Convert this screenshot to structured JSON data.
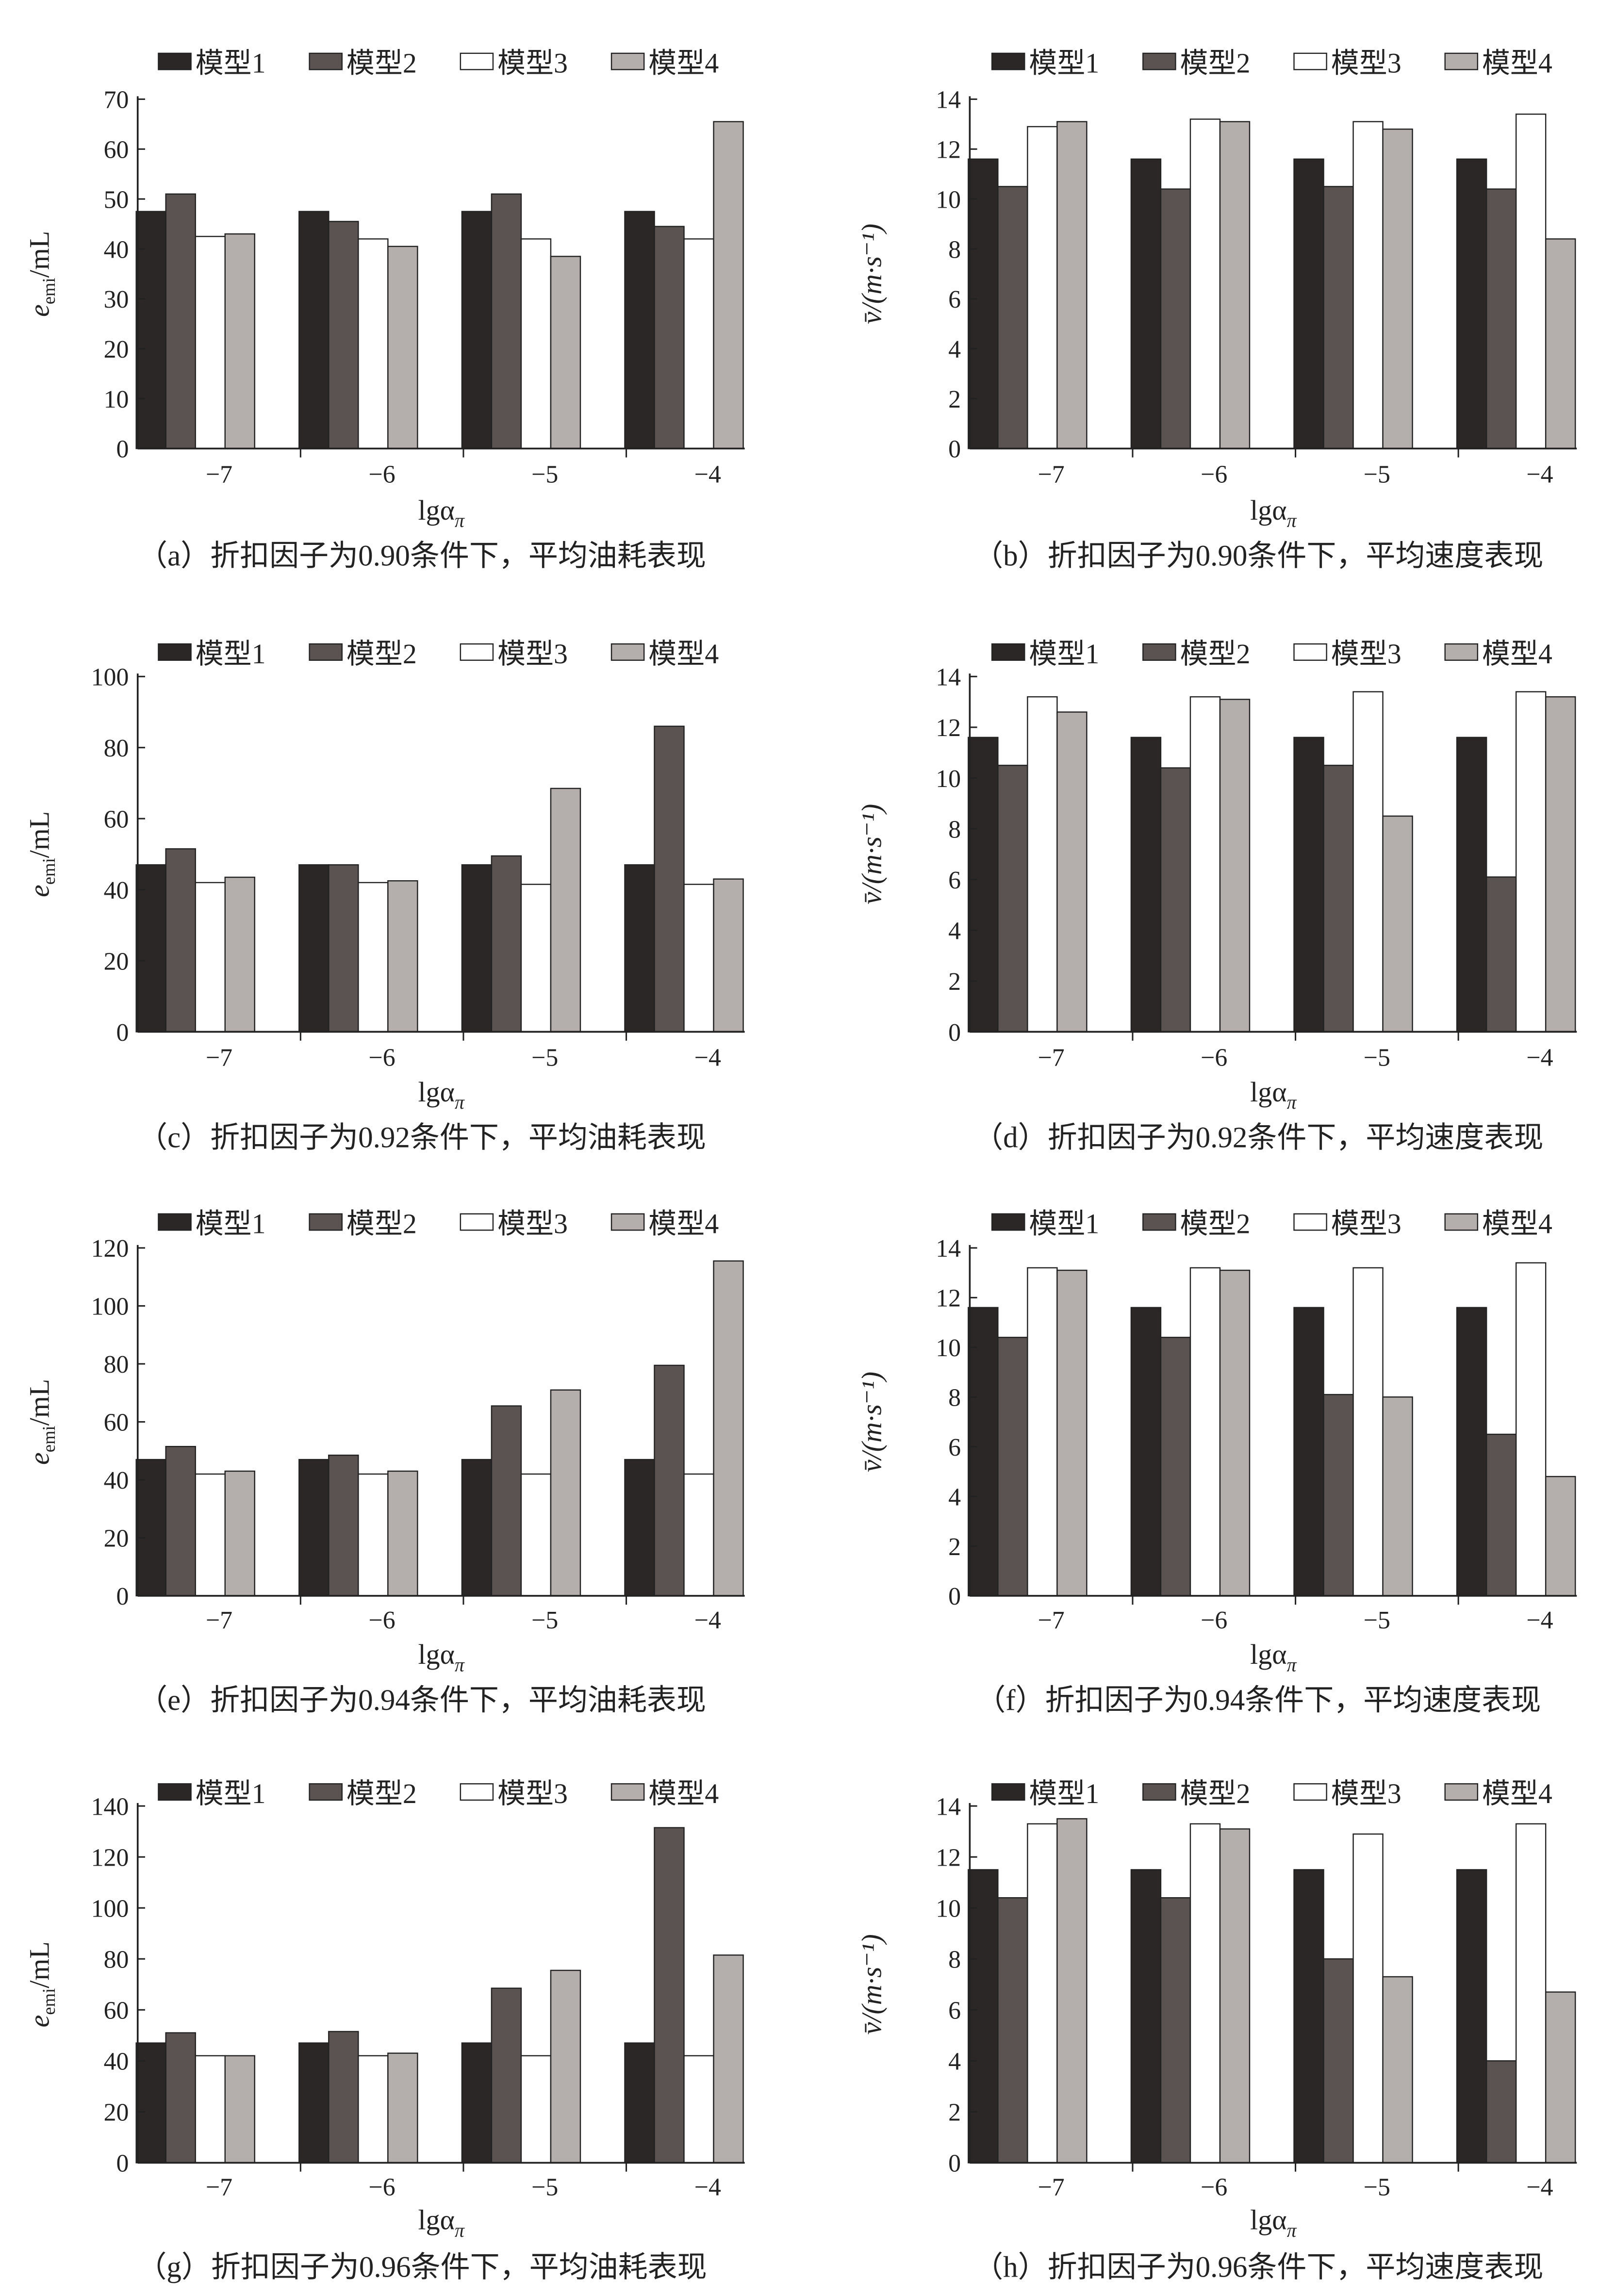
{
  "colors": {
    "model1": "#2b2726",
    "model2": "#5a5352",
    "model3": "#ffffff",
    "model4": "#b4aeac",
    "axis": "#222222"
  },
  "legend": [
    "模型1",
    "模型2",
    "模型3",
    "模型4"
  ],
  "xlabel": {
    "main": "lgα",
    "sub": "π"
  },
  "chart_data": [
    {
      "type": "bar",
      "id": "a",
      "caption": "（a）折扣因子为0.90条件下，平均油耗表现",
      "categories": [
        "−7",
        "−6",
        "−5",
        "−4"
      ],
      "ylabel": {
        "main": "e",
        "sub": "emi",
        "rest": "/mL"
      },
      "ylim": [
        0,
        70
      ],
      "yticks": [
        "0",
        "10",
        "20",
        "30",
        "40",
        "50",
        "60",
        "70"
      ],
      "ystep": 10,
      "series": [
        {
          "name": "模型1",
          "values": [
            47.5,
            47.5,
            47.5,
            47.5
          ]
        },
        {
          "name": "模型2",
          "values": [
            51,
            45.5,
            51,
            44.5
          ]
        },
        {
          "name": "模型3",
          "values": [
            42.5,
            42,
            42,
            42
          ]
        },
        {
          "name": "模型4",
          "values": [
            43,
            40.5,
            38.5,
            65.5
          ]
        }
      ]
    },
    {
      "type": "bar",
      "id": "b",
      "caption": "（b）折扣因子为0.90条件下，平均速度表现",
      "categories": [
        "−7",
        "−6",
        "−5",
        "−4"
      ],
      "ylabel": {
        "main": "v̄/(m·s⁻¹)",
        "sub": "",
        "rest": ""
      },
      "ylim": [
        0,
        14
      ],
      "yticks": [
        "0",
        "2",
        "4",
        "6",
        "8",
        "10",
        "12",
        "14"
      ],
      "ystep": 2,
      "series": [
        {
          "name": "模型1",
          "values": [
            11.6,
            11.6,
            11.6,
            11.6
          ]
        },
        {
          "name": "模型2",
          "values": [
            10.5,
            10.4,
            10.5,
            10.4
          ]
        },
        {
          "name": "模型3",
          "values": [
            12.9,
            13.2,
            13.1,
            13.4
          ]
        },
        {
          "name": "模型4",
          "values": [
            13.1,
            13.1,
            12.8,
            8.4
          ]
        }
      ]
    },
    {
      "type": "bar",
      "id": "c",
      "caption": "（c）折扣因子为0.92条件下，平均油耗表现",
      "categories": [
        "−7",
        "−6",
        "−5",
        "−4"
      ],
      "ylabel": {
        "main": "e",
        "sub": "emi",
        "rest": "/mL"
      },
      "ylim": [
        0,
        100
      ],
      "yticks": [
        "0",
        "20",
        "40",
        "60",
        "80",
        "100"
      ],
      "ystep": 20,
      "series": [
        {
          "name": "模型1",
          "values": [
            47,
            47,
            47,
            47
          ]
        },
        {
          "name": "模型2",
          "values": [
            51.5,
            47,
            49.5,
            86
          ]
        },
        {
          "name": "模型3",
          "values": [
            42,
            42,
            41.5,
            41.5
          ]
        },
        {
          "name": "模型4",
          "values": [
            43.5,
            42.5,
            68.5,
            43
          ]
        }
      ]
    },
    {
      "type": "bar",
      "id": "d",
      "caption": "（d）折扣因子为0.92条件下，平均速度表现",
      "categories": [
        "−7",
        "−6",
        "−5",
        "−4"
      ],
      "ylabel": {
        "main": "v̄/(m·s⁻¹)",
        "sub": "",
        "rest": ""
      },
      "ylim": [
        0,
        14
      ],
      "yticks": [
        "0",
        "2",
        "4",
        "6",
        "8",
        "10",
        "12",
        "14"
      ],
      "ystep": 2,
      "series": [
        {
          "name": "模型1",
          "values": [
            11.6,
            11.6,
            11.6,
            11.6
          ]
        },
        {
          "name": "模型2",
          "values": [
            10.5,
            10.4,
            10.5,
            6.1
          ]
        },
        {
          "name": "模型3",
          "values": [
            13.2,
            13.2,
            13.4,
            13.4
          ]
        },
        {
          "name": "模型4",
          "values": [
            12.6,
            13.1,
            8.5,
            13.2
          ]
        }
      ]
    },
    {
      "type": "bar",
      "id": "e",
      "caption": "（e）折扣因子为0.94条件下，平均油耗表现",
      "categories": [
        "−7",
        "−6",
        "−5",
        "−4"
      ],
      "ylabel": {
        "main": "e",
        "sub": "emi",
        "rest": "/mL"
      },
      "ylim": [
        0,
        120
      ],
      "yticks": [
        "0",
        "20",
        "40",
        "60",
        "80",
        "100",
        "120"
      ],
      "ystep": 20,
      "series": [
        {
          "name": "模型1",
          "values": [
            47,
            47,
            47,
            47
          ]
        },
        {
          "name": "模型2",
          "values": [
            51.5,
            48.5,
            65.5,
            79.5
          ]
        },
        {
          "name": "模型3",
          "values": [
            42,
            42,
            42,
            42
          ]
        },
        {
          "name": "模型4",
          "values": [
            43,
            43,
            71,
            115.5
          ]
        }
      ]
    },
    {
      "type": "bar",
      "id": "f",
      "caption": "（f）折扣因子为0.94条件下，平均速度表现",
      "categories": [
        "−7",
        "−6",
        "−5",
        "−4"
      ],
      "ylabel": {
        "main": "v̄/(m·s⁻¹)",
        "sub": "",
        "rest": ""
      },
      "ylim": [
        0,
        14
      ],
      "yticks": [
        "0",
        "2",
        "4",
        "6",
        "8",
        "10",
        "12",
        "14"
      ],
      "ystep": 2,
      "series": [
        {
          "name": "模型1",
          "values": [
            11.6,
            11.6,
            11.6,
            11.6
          ]
        },
        {
          "name": "模型2",
          "values": [
            10.4,
            10.4,
            8.1,
            6.5
          ]
        },
        {
          "name": "模型3",
          "values": [
            13.2,
            13.2,
            13.2,
            13.4
          ]
        },
        {
          "name": "模型4",
          "values": [
            13.1,
            13.1,
            8.0,
            4.8
          ]
        }
      ]
    },
    {
      "type": "bar",
      "id": "g",
      "caption": "（g）折扣因子为0.96条件下，平均油耗表现",
      "categories": [
        "−7",
        "−6",
        "−5",
        "−4"
      ],
      "ylabel": {
        "main": "e",
        "sub": "emi",
        "rest": "/mL"
      },
      "ylim": [
        0,
        140
      ],
      "yticks": [
        "0",
        "20",
        "40",
        "60",
        "80",
        "100",
        "120",
        "140"
      ],
      "ystep": 20,
      "series": [
        {
          "name": "模型1",
          "values": [
            47,
            47,
            47,
            47
          ]
        },
        {
          "name": "模型2",
          "values": [
            51,
            51.5,
            68.5,
            131.5
          ]
        },
        {
          "name": "模型3",
          "values": [
            42,
            42,
            42,
            42
          ]
        },
        {
          "name": "模型4",
          "values": [
            42,
            43,
            75.5,
            81.5
          ]
        }
      ]
    },
    {
      "type": "bar",
      "id": "h",
      "caption": "（h）折扣因子为0.96条件下，平均速度表现",
      "categories": [
        "−7",
        "−6",
        "−5",
        "−4"
      ],
      "ylabel": {
        "main": "v̄/(m·s⁻¹)",
        "sub": "",
        "rest": ""
      },
      "ylim": [
        0,
        14
      ],
      "yticks": [
        "0",
        "2",
        "4",
        "6",
        "8",
        "10",
        "12",
        "14"
      ],
      "ystep": 2,
      "series": [
        {
          "name": "模型1",
          "values": [
            11.5,
            11.5,
            11.5,
            11.5
          ]
        },
        {
          "name": "模型2",
          "values": [
            10.4,
            10.4,
            8.0,
            4.0
          ]
        },
        {
          "name": "模型3",
          "values": [
            13.3,
            13.3,
            12.9,
            13.3
          ]
        },
        {
          "name": "模型4",
          "values": [
            13.5,
            13.1,
            7.3,
            6.7
          ]
        }
      ]
    }
  ]
}
